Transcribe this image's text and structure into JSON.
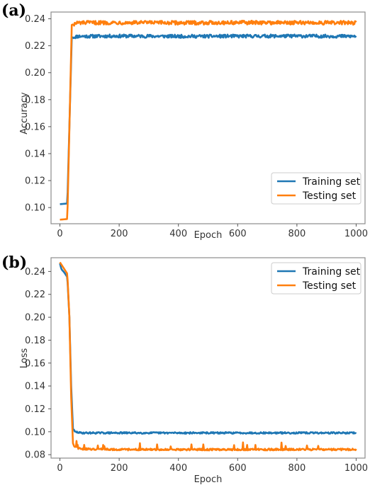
{
  "panels": {
    "a_label": "(a)",
    "b_label": "(b)"
  },
  "colors": {
    "training": "#1f77b4",
    "testing": "#ff7f0e",
    "frame": "#8c8c8c"
  },
  "chart_data": [
    {
      "type": "line",
      "panel": "(a)",
      "xlabel": "Epoch",
      "ylabel": "Accuracy",
      "xlim": [
        -30,
        1030
      ],
      "ylim": [
        0.088,
        0.245
      ],
      "xticks": [
        0,
        200,
        400,
        600,
        800,
        1000
      ],
      "yticks": [
        0.1,
        0.12,
        0.14,
        0.16,
        0.18,
        0.2,
        0.22,
        0.24
      ],
      "ytick_labels": [
        "0.10",
        "0.12",
        "0.14",
        "0.16",
        "0.18",
        "0.20",
        "0.22",
        "0.24"
      ],
      "legend": "lower-right",
      "grid": false,
      "series": [
        {
          "name": "Training set",
          "color": "#1f77b4",
          "x": [
            0,
            25,
            40,
            60,
            200,
            400,
            600,
            800,
            1000
          ],
          "y": [
            0.1025,
            0.103,
            0.226,
            0.227,
            0.2272,
            0.227,
            0.2271,
            0.2272,
            0.227
          ],
          "noise": 0.0012
        },
        {
          "name": "Testing set",
          "color": "#ff7f0e",
          "x": [
            0,
            25,
            40,
            60,
            200,
            400,
            600,
            800,
            1000
          ],
          "y": [
            0.091,
            0.0915,
            0.2355,
            0.237,
            0.2372,
            0.237,
            0.2372,
            0.2371,
            0.237
          ],
          "noise": 0.0014
        }
      ]
    },
    {
      "type": "line",
      "panel": "(b)",
      "xlabel": "Epoch",
      "ylabel": "Loss",
      "xlim": [
        -30,
        1030
      ],
      "ylim": [
        0.077,
        0.252
      ],
      "xticks": [
        0,
        200,
        400,
        600,
        800,
        1000
      ],
      "yticks": [
        0.08,
        0.1,
        0.12,
        0.14,
        0.16,
        0.18,
        0.2,
        0.22,
        0.24
      ],
      "ytick_labels": [
        "0.08",
        "0.10",
        "0.12",
        "0.14",
        "0.16",
        "0.18",
        "0.20",
        "0.22",
        "0.24"
      ],
      "legend": "top-right",
      "grid": false,
      "series": [
        {
          "name": "Training set",
          "color": "#1f77b4",
          "x": [
            0,
            5,
            15,
            25,
            32,
            38,
            44,
            50,
            70,
            200,
            400,
            600,
            800,
            1000
          ],
          "y": [
            0.247,
            0.242,
            0.239,
            0.235,
            0.2,
            0.14,
            0.103,
            0.1,
            0.099,
            0.099,
            0.099,
            0.099,
            0.099,
            0.099
          ],
          "noise": 0.0007
        },
        {
          "name": "Testing set",
          "color": "#ff7f0e",
          "x": [
            0,
            5,
            15,
            25,
            32,
            38,
            44,
            50,
            70,
            200,
            400,
            600,
            800,
            1000
          ],
          "y": [
            0.248,
            0.246,
            0.242,
            0.238,
            0.2,
            0.13,
            0.09,
            0.087,
            0.085,
            0.0845,
            0.0845,
            0.0845,
            0.0845,
            0.0845
          ],
          "noise": 0.0008
        }
      ]
    }
  ]
}
